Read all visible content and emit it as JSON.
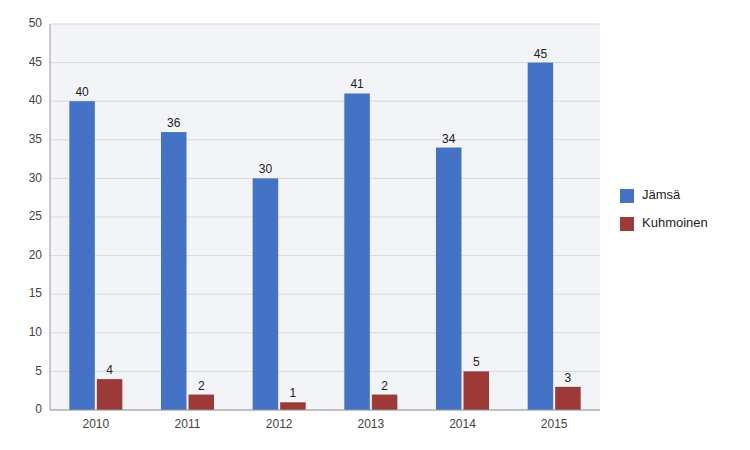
{
  "chart_data": {
    "type": "bar",
    "categories": [
      "2010",
      "2011",
      "2012",
      "2013",
      "2014",
      "2015"
    ],
    "series": [
      {
        "name": "Jämsä",
        "color": "#4472C4",
        "values": [
          40,
          36,
          30,
          41,
          34,
          45
        ]
      },
      {
        "name": "Kuhmoinen",
        "color": "#9B3A37",
        "values": [
          4,
          2,
          1,
          2,
          5,
          3
        ]
      }
    ],
    "ylim": [
      0,
      50
    ],
    "yticks": [
      0,
      5,
      10,
      15,
      20,
      25,
      30,
      35,
      40,
      45,
      50
    ],
    "grid": true,
    "legend": "right",
    "data_labels": true
  }
}
